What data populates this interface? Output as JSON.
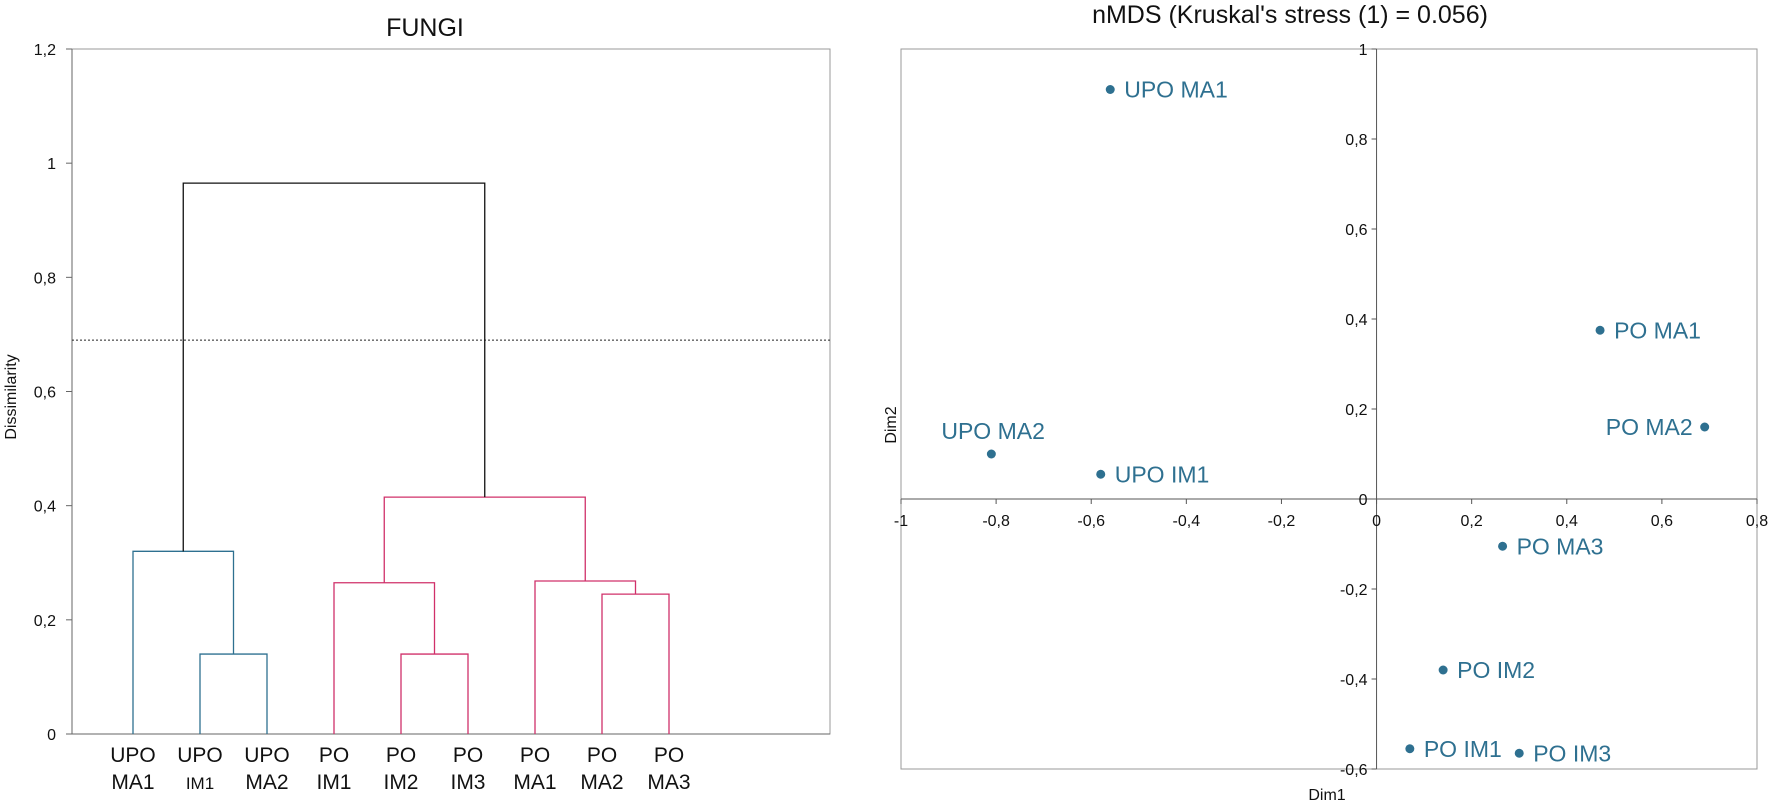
{
  "chart_data": [
    {
      "type": "dendrogram",
      "title": "FUNGI",
      "ylabel": "Dissimilarity",
      "ylim": [
        0,
        1.2
      ],
      "yticks": [
        "0",
        "0,2",
        "0,4",
        "0,6",
        "0,8",
        "1",
        "1,2"
      ],
      "truncation_level": 0.69,
      "leaves": [
        {
          "line1": "UPO",
          "line2": "MA1"
        },
        {
          "line1": "UPO",
          "line2": "IM1"
        },
        {
          "line1": "UPO",
          "line2": "MA2"
        },
        {
          "line1": "PO",
          "line2": "IM1"
        },
        {
          "line1": "PO",
          "line2": "IM2"
        },
        {
          "line1": "PO",
          "line2": "IM3"
        },
        {
          "line1": "PO",
          "line2": "MA1"
        },
        {
          "line1": "PO",
          "line2": "MA2"
        },
        {
          "line1": "PO",
          "line2": "MA3"
        }
      ],
      "merges": [
        {
          "left": "leaf:1",
          "right": "leaf:2",
          "height": 0.14,
          "color": "#2e7090"
        },
        {
          "left": "leaf:0",
          "right": "node:0",
          "height": 0.32,
          "color": "#2e7090"
        },
        {
          "left": "leaf:4",
          "right": "leaf:5",
          "height": 0.14,
          "color": "#d0306a"
        },
        {
          "left": "leaf:3",
          "right": "node:2",
          "height": 0.265,
          "color": "#d0306a"
        },
        {
          "left": "leaf:7",
          "right": "leaf:8",
          "height": 0.245,
          "color": "#d0306a"
        },
        {
          "left": "leaf:6",
          "right": "node:4",
          "height": 0.268,
          "color": "#d0306a"
        },
        {
          "left": "node:3",
          "right": "node:5",
          "height": 0.415,
          "color": "#d0306a"
        },
        {
          "left": "node:1",
          "right": "node:6",
          "height": 0.965,
          "color": "#111111"
        }
      ]
    },
    {
      "type": "scatter",
      "title": "nMDS (Kruskal's stress (1) = 0.056)",
      "xlabel": "Dim1",
      "ylabel": "Dim2",
      "xlim": [
        -1,
        0.8
      ],
      "ylim": [
        -0.6,
        1
      ],
      "xticks": [
        {
          "v": -1,
          "t": "-1"
        },
        {
          "v": -0.8,
          "t": "-0,8"
        },
        {
          "v": -0.6,
          "t": "-0,6"
        },
        {
          "v": -0.4,
          "t": "-0,4"
        },
        {
          "v": -0.2,
          "t": "-0,2"
        },
        {
          "v": 0,
          "t": "0"
        },
        {
          "v": 0.2,
          "t": "0,2"
        },
        {
          "v": 0.4,
          "t": "0,4"
        },
        {
          "v": 0.6,
          "t": "0,6"
        },
        {
          "v": 0.8,
          "t": "0,8"
        }
      ],
      "yticks": [
        {
          "v": -0.6,
          "t": "-0,6"
        },
        {
          "v": -0.4,
          "t": "-0,4"
        },
        {
          "v": -0.2,
          "t": "-0,2"
        },
        {
          "v": 0,
          "t": "0"
        },
        {
          "v": 0.2,
          "t": "0,2"
        },
        {
          "v": 0.4,
          "t": "0,4"
        },
        {
          "v": 0.6,
          "t": "0,6"
        },
        {
          "v": 0.8,
          "t": "0,8"
        },
        {
          "v": 1,
          "t": "1"
        }
      ],
      "point_color": "#2e7090",
      "points": [
        {
          "label": "UPO MA1",
          "x": -0.56,
          "y": 0.91,
          "pos": "right"
        },
        {
          "label": "UPO MA2",
          "x": -0.81,
          "y": 0.1,
          "pos": "above"
        },
        {
          "label": "UPO IM1",
          "x": -0.58,
          "y": 0.055,
          "pos": "right"
        },
        {
          "label": "PO MA1",
          "x": 0.47,
          "y": 0.375,
          "pos": "right"
        },
        {
          "label": "PO MA2",
          "x": 0.69,
          "y": 0.16,
          "pos": "left"
        },
        {
          "label": "PO MA3",
          "x": 0.265,
          "y": -0.105,
          "pos": "right"
        },
        {
          "label": "PO IM2",
          "x": 0.14,
          "y": -0.38,
          "pos": "right"
        },
        {
          "label": "PO IM1",
          "x": 0.07,
          "y": -0.555,
          "pos": "right"
        },
        {
          "label": "PO IM3",
          "x": 0.3,
          "y": -0.565,
          "pos": "right"
        }
      ]
    }
  ]
}
